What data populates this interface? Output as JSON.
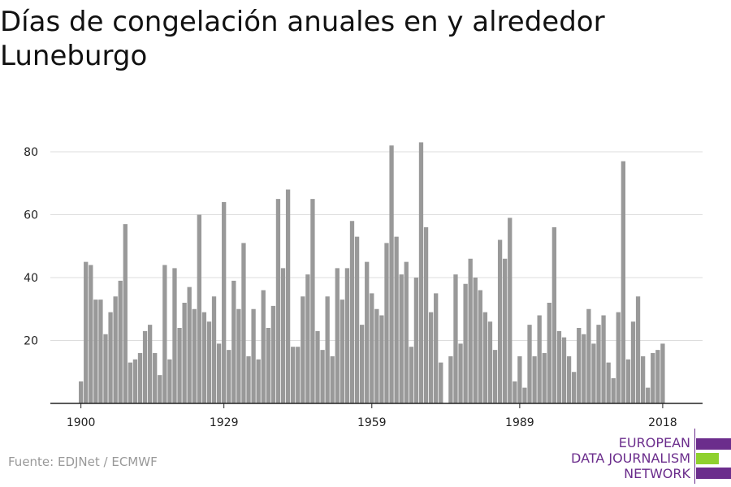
{
  "title": "Días de congelación anuales en y alrededor Luneburgo",
  "source": "Fuente: EDJNet / ECMWF",
  "logo": {
    "line1": "EUROPEAN",
    "line2": "DATA JOURNALISM",
    "line3": "NETWORK"
  },
  "colors": {
    "bar": "#999999",
    "grid": "#dddddd",
    "axis": "#222222",
    "logo_purple": "#6b2d8c",
    "logo_green": "#8fd12e"
  },
  "chart_data": {
    "type": "bar",
    "title": "Días de congelación anuales en y alrededor Luneburgo",
    "xlabel": "",
    "ylabel": "",
    "x_tick_labels": [
      "1900",
      "1929",
      "1959",
      "1989",
      "2018"
    ],
    "y_ticks": [
      20,
      40,
      60,
      80
    ],
    "ylim": [
      0,
      85
    ],
    "grid": true,
    "categories": [
      1900,
      1901,
      1902,
      1903,
      1904,
      1905,
      1906,
      1907,
      1908,
      1909,
      1910,
      1911,
      1912,
      1913,
      1914,
      1915,
      1916,
      1917,
      1918,
      1919,
      1920,
      1921,
      1922,
      1923,
      1924,
      1925,
      1926,
      1927,
      1928,
      1929,
      1930,
      1931,
      1932,
      1933,
      1934,
      1935,
      1936,
      1937,
      1938,
      1939,
      1940,
      1941,
      1942,
      1943,
      1944,
      1945,
      1946,
      1947,
      1948,
      1949,
      1950,
      1951,
      1952,
      1953,
      1954,
      1955,
      1956,
      1957,
      1958,
      1959,
      1960,
      1961,
      1962,
      1963,
      1964,
      1965,
      1966,
      1967,
      1968,
      1969,
      1970,
      1971,
      1972,
      1973,
      1974,
      1975,
      1976,
      1977,
      1978,
      1979,
      1980,
      1981,
      1982,
      1983,
      1984,
      1985,
      1986,
      1987,
      1988,
      1989,
      1990,
      1991,
      1992,
      1993,
      1994,
      1995,
      1996,
      1997,
      1998,
      1999,
      2000,
      2001,
      2002,
      2003,
      2004,
      2005,
      2006,
      2007,
      2008,
      2009,
      2010,
      2011,
      2012,
      2013,
      2014,
      2015,
      2016,
      2017,
      2018
    ],
    "values": [
      7,
      45,
      44,
      33,
      33,
      22,
      29,
      34,
      39,
      57,
      13,
      14,
      16,
      23,
      25,
      16,
      9,
      44,
      14,
      43,
      24,
      32,
      37,
      30,
      60,
      29,
      26,
      34,
      19,
      64,
      17,
      39,
      30,
      51,
      15,
      30,
      14,
      36,
      24,
      31,
      65,
      43,
      68,
      18,
      18,
      34,
      41,
      65,
      23,
      17,
      34,
      15,
      43,
      33,
      43,
      58,
      53,
      25,
      45,
      35,
      30,
      28,
      51,
      82,
      53,
      41,
      45,
      18,
      40,
      83,
      56,
      29,
      35,
      13,
      0,
      15,
      41,
      19,
      38,
      46,
      40,
      36,
      29,
      26,
      17,
      52,
      46,
      59,
      7,
      15,
      5,
      25,
      15,
      28,
      16,
      32,
      56,
      23,
      21,
      15,
      10,
      24,
      22,
      30,
      19,
      25,
      28,
      13,
      8,
      29,
      77,
      14,
      26,
      34,
      15,
      5,
      16,
      17,
      19
    ]
  }
}
